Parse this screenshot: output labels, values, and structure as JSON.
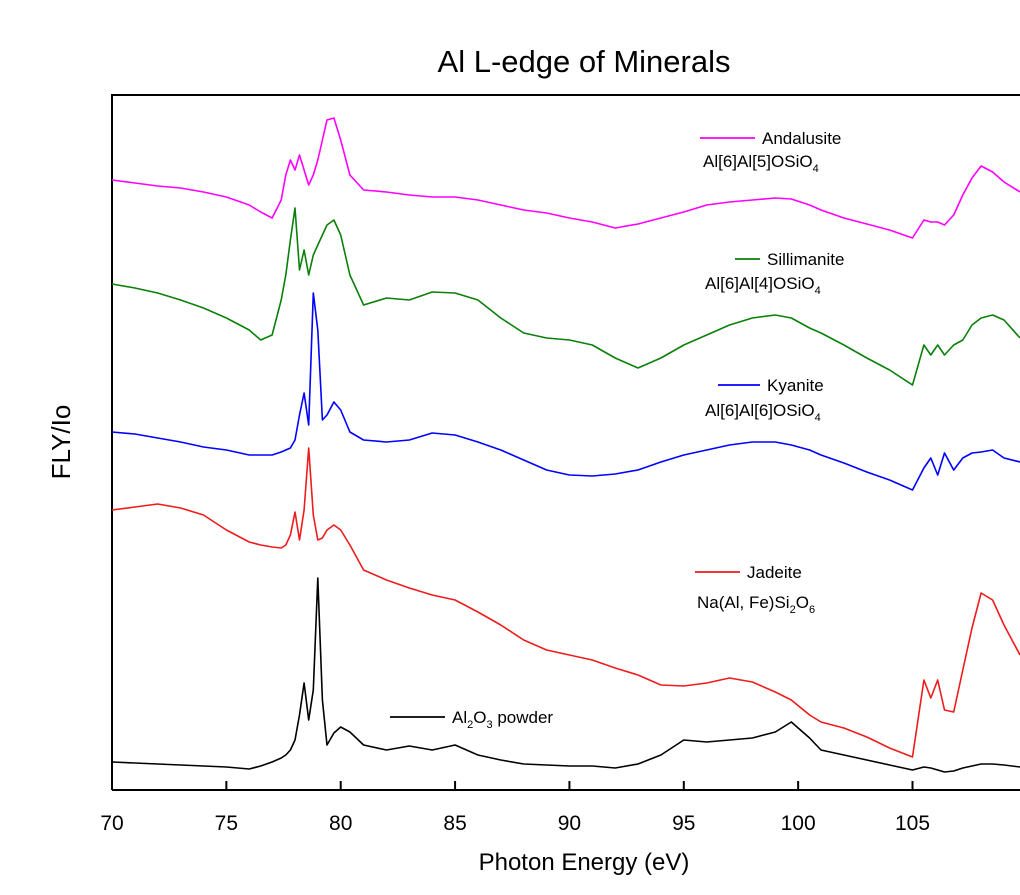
{
  "chart_data": {
    "type": "line",
    "title": "Al L-edge of Minerals",
    "x_label": "Photon Energy (eV)",
    "y_label": "FLY/Io",
    "x": [
      70,
      71,
      72,
      73,
      74,
      75,
      76,
      76.5,
      77,
      77.4,
      77.6,
      77.8,
      78,
      78.2,
      78.4,
      78.6,
      78.8,
      79,
      79.2,
      79.4,
      79.7,
      80,
      80.4,
      81,
      82,
      83,
      84,
      85,
      86,
      87,
      88,
      89,
      90,
      91,
      92,
      93,
      94,
      95,
      96,
      97,
      98,
      99,
      99.7,
      100.5,
      101,
      102,
      103,
      104,
      105,
      105.5,
      105.8,
      106.1,
      106.4,
      106.8,
      107.2,
      107.6,
      108,
      108.5,
      109,
      109.7
    ],
    "series": [
      {
        "name": "Andalusite",
        "formula": [
          {
            "text": "Al[6]Al[5]OSiO"
          },
          {
            "sub": "4"
          }
        ],
        "color": "#ff00ff",
        "values": [
          122,
          121.4,
          120.8,
          120.4,
          119.6,
          118.6,
          117,
          115.6,
          114.4,
          118,
          123,
          126,
          124,
          127,
          124,
          121,
          123,
          126,
          130,
          134,
          134.4,
          130,
          123,
          120,
          119.6,
          119,
          118.6,
          118.6,
          118,
          117,
          116,
          115.4,
          114.4,
          113.6,
          112.4,
          113.2,
          114.4,
          115.6,
          117,
          117.6,
          118,
          118.4,
          118.2,
          117,
          116,
          114.4,
          113.2,
          112,
          110.4,
          114,
          113.6,
          113.6,
          113,
          115,
          119,
          122.4,
          124.8,
          123.6,
          121.6,
          119.6
        ]
      },
      {
        "name": "Sillimanite",
        "formula": [
          {
            "text": "Al[6]Al[4]OSiO"
          },
          {
            "sub": "4"
          }
        ],
        "color": "#0a800a",
        "values": [
          101.2,
          100.4,
          99.4,
          98,
          96.4,
          94.4,
          92,
          90,
          91,
          98,
          103,
          110,
          116.4,
          104,
          108,
          103,
          107,
          109,
          111,
          113,
          114,
          111,
          103,
          97,
          98.4,
          98,
          99.6,
          99.4,
          98,
          94.4,
          91.4,
          90.4,
          90,
          89,
          86.4,
          84.4,
          86.4,
          89,
          91,
          93,
          94.4,
          95,
          94.4,
          92.4,
          91.4,
          89,
          86.4,
          84,
          81,
          89,
          87,
          89,
          87,
          89,
          90,
          93,
          94.4,
          95,
          94,
          90.4
        ]
      },
      {
        "name": "Kyanite",
        "formula": [
          {
            "text": "Al[6]Al[6]OSiO"
          },
          {
            "sub": "4"
          }
        ],
        "color": "#0000ff",
        "values": [
          71.6,
          71.2,
          70.4,
          69.6,
          68.6,
          68,
          67,
          67,
          67,
          67.6,
          68,
          68.4,
          70,
          75,
          79.4,
          73,
          99.4,
          92,
          74,
          75,
          77.6,
          76,
          71.6,
          70,
          69.6,
          70,
          71.4,
          71,
          69.6,
          68,
          66,
          64,
          63,
          62.8,
          63.2,
          64,
          65.6,
          67,
          68,
          69,
          69.6,
          69.6,
          69,
          68,
          67,
          65.4,
          63.6,
          62,
          60,
          64.4,
          66.4,
          63,
          67.4,
          64,
          66.4,
          67.4,
          67.6,
          68,
          66.4,
          65.6
        ]
      },
      {
        "name": "Jadeite",
        "formula": [
          {
            "text": "Na(Al, Fe)Si"
          },
          {
            "sub": "2"
          },
          {
            "text": "O"
          },
          {
            "sub": "6"
          }
        ],
        "color": "#ee1c1c",
        "values": [
          56,
          56.6,
          57.2,
          56.4,
          55,
          52,
          49.6,
          49,
          48.6,
          48.4,
          49,
          51,
          55.6,
          50,
          56,
          68.4,
          55,
          50,
          50.4,
          52,
          53,
          52,
          49,
          44,
          42,
          40.4,
          39,
          38,
          35.6,
          33,
          30,
          28,
          27,
          26,
          24.4,
          23,
          21,
          20.8,
          21.4,
          22.4,
          21.6,
          19.6,
          18,
          15,
          13.6,
          12.4,
          10.6,
          8.4,
          6.6,
          22,
          18.4,
          22,
          16,
          15.6,
          24,
          32.4,
          39.4,
          38,
          33,
          27
        ]
      },
      {
        "name": [
          {
            "text": "Al"
          },
          {
            "sub": "2"
          },
          {
            "text": "O"
          },
          {
            "sub": "3"
          },
          {
            "text": " powder"
          }
        ],
        "color": "#000000",
        "values": [
          5.6,
          5.4,
          5.2,
          5,
          4.8,
          4.6,
          4.2,
          4.8,
          5.6,
          6.4,
          7,
          8,
          10,
          15,
          21.4,
          14,
          20,
          42.4,
          18,
          9,
          11.4,
          12.6,
          11.6,
          9,
          8,
          8.8,
          8,
          9,
          7,
          6,
          5.2,
          5,
          4.8,
          4.8,
          4.4,
          5.2,
          7,
          10,
          9.6,
          10,
          10.4,
          11.6,
          13.6,
          10.4,
          8,
          7,
          6,
          5,
          4,
          4.6,
          4.4,
          4,
          3.6,
          3.8,
          4.4,
          4.8,
          5.2,
          5.2,
          5,
          4.6
        ]
      }
    ],
    "xlim": [
      70,
      109.7
    ],
    "xticks": [
      70,
      75,
      80,
      85,
      90,
      95,
      100,
      105
    ],
    "ylim": [
      0,
      139
    ]
  }
}
